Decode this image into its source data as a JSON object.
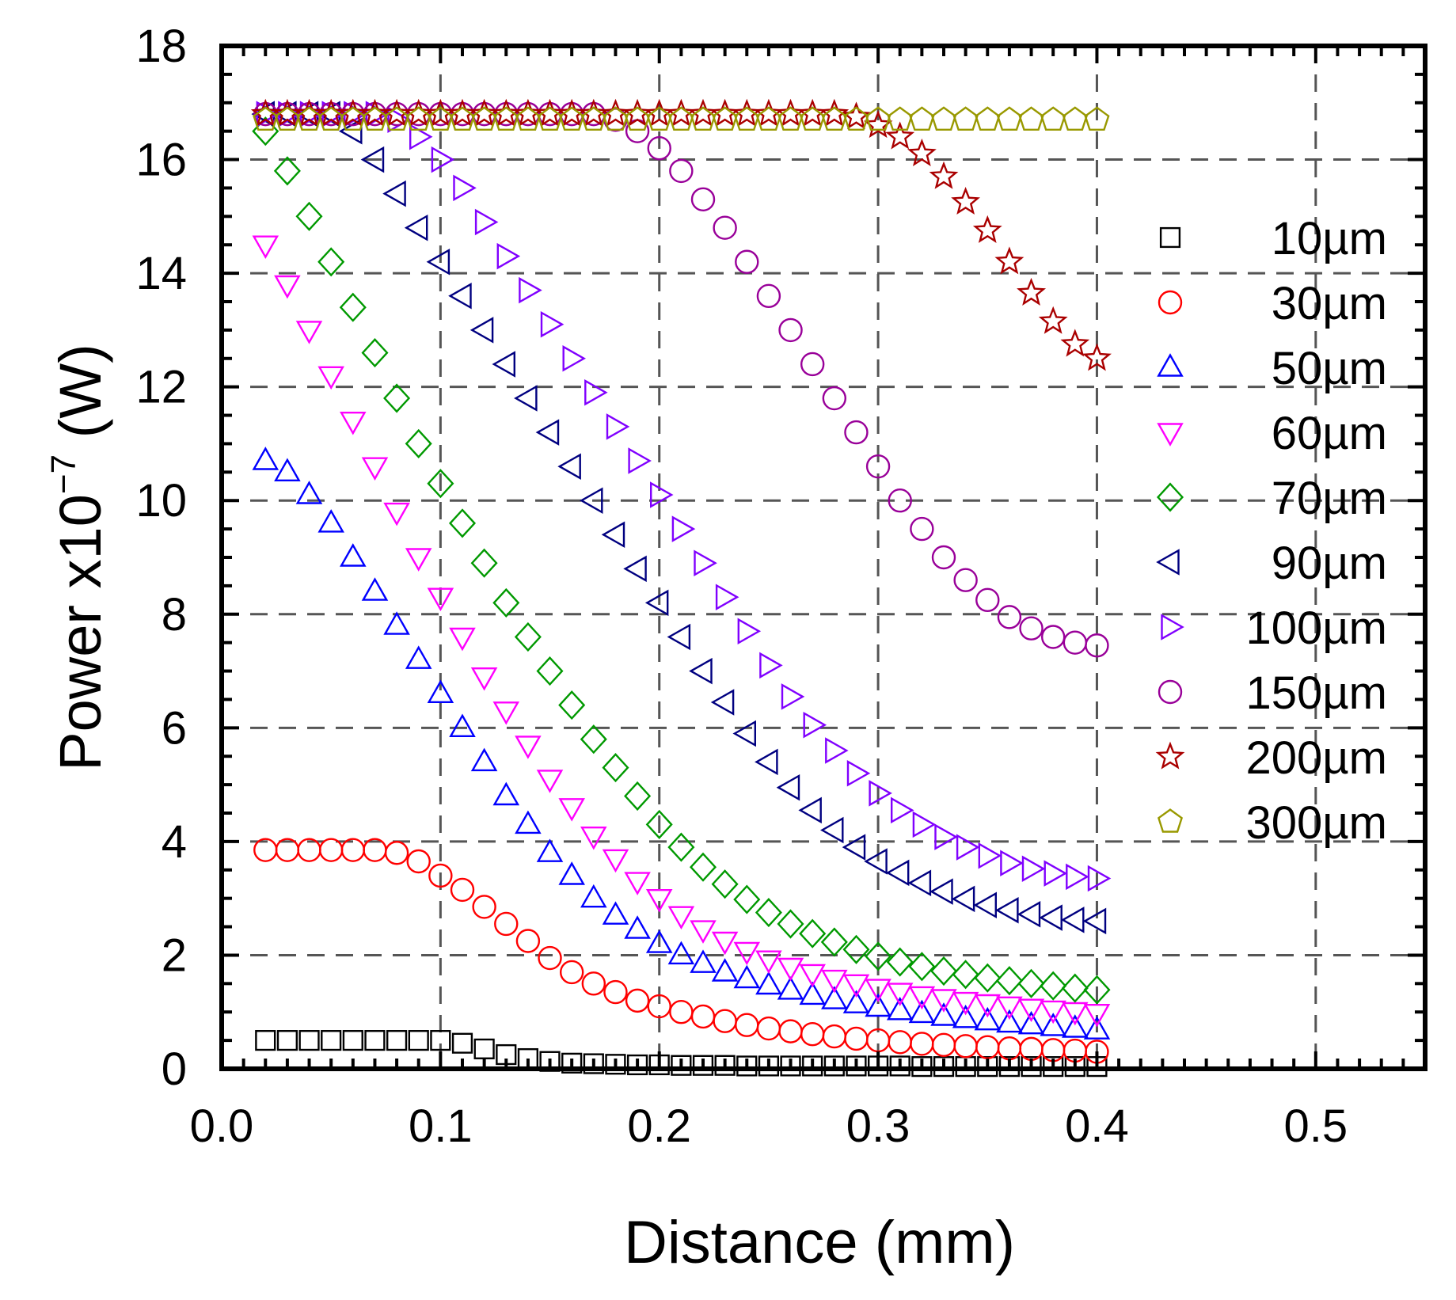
{
  "chart_data": {
    "type": "scatter",
    "title": "",
    "xlabel": "Distance (mm)",
    "ylabel": {
      "base": "Power x10",
      "exponent": "−7",
      "unit": " (W)"
    },
    "xlim": [
      0.0,
      0.55
    ],
    "ylim": [
      0,
      18
    ],
    "xticks": [
      0.0,
      0.1,
      0.2,
      0.3,
      0.4,
      0.5
    ],
    "xtick_labels": [
      "0.0",
      "0.1",
      "0.2",
      "0.3",
      "0.4",
      "0.5"
    ],
    "yticks": [
      0,
      2,
      4,
      6,
      8,
      10,
      12,
      14,
      16,
      18
    ],
    "ytick_labels": [
      "0",
      "2",
      "4",
      "6",
      "8",
      "10",
      "12",
      "14",
      "16",
      "18"
    ],
    "grid": true,
    "legend_position": "right",
    "x": [
      0.02,
      0.03,
      0.04,
      0.05,
      0.06,
      0.07,
      0.08,
      0.09,
      0.1,
      0.11,
      0.12,
      0.13,
      0.14,
      0.15,
      0.16,
      0.17,
      0.18,
      0.19,
      0.2,
      0.21,
      0.22,
      0.23,
      0.24,
      0.25,
      0.26,
      0.27,
      0.28,
      0.29,
      0.3,
      0.31,
      0.32,
      0.33,
      0.34,
      0.35,
      0.36,
      0.37,
      0.38,
      0.39,
      0.4
    ],
    "series": [
      {
        "name": "10µm",
        "marker": "square",
        "color": "#000000",
        "values": [
          0.5,
          0.5,
          0.5,
          0.5,
          0.5,
          0.5,
          0.5,
          0.5,
          0.5,
          0.45,
          0.35,
          0.25,
          0.18,
          0.13,
          0.1,
          0.09,
          0.08,
          0.07,
          0.07,
          0.06,
          0.06,
          0.06,
          0.05,
          0.05,
          0.05,
          0.05,
          0.05,
          0.05,
          0.05,
          0.05,
          0.04,
          0.04,
          0.04,
          0.04,
          0.04,
          0.04,
          0.04,
          0.04,
          0.04
        ]
      },
      {
        "name": "30µm",
        "marker": "circle",
        "color": "#ff0000",
        "values": [
          3.85,
          3.85,
          3.85,
          3.85,
          3.85,
          3.85,
          3.8,
          3.65,
          3.4,
          3.15,
          2.85,
          2.55,
          2.25,
          1.95,
          1.7,
          1.5,
          1.35,
          1.2,
          1.1,
          1.0,
          0.92,
          0.84,
          0.77,
          0.71,
          0.66,
          0.61,
          0.57,
          0.53,
          0.5,
          0.47,
          0.44,
          0.42,
          0.4,
          0.38,
          0.36,
          0.35,
          0.33,
          0.32,
          0.3
        ]
      },
      {
        "name": "50µm",
        "marker": "triangle-up",
        "color": "#0000ff",
        "values": [
          10.7,
          10.5,
          10.1,
          9.6,
          9.0,
          8.4,
          7.8,
          7.2,
          6.6,
          6.0,
          5.4,
          4.8,
          4.3,
          3.8,
          3.4,
          3.0,
          2.7,
          2.45,
          2.2,
          2.0,
          1.85,
          1.7,
          1.58,
          1.47,
          1.38,
          1.29,
          1.21,
          1.14,
          1.08,
          1.02,
          0.97,
          0.92,
          0.88,
          0.84,
          0.8,
          0.77,
          0.74,
          0.71,
          0.68
        ]
      },
      {
        "name": "60µm",
        "marker": "triangle-down",
        "color": "#ff00ff",
        "values": [
          14.5,
          13.8,
          13.0,
          12.2,
          11.4,
          10.6,
          9.8,
          9.0,
          8.3,
          7.6,
          6.9,
          6.3,
          5.7,
          5.1,
          4.6,
          4.1,
          3.7,
          3.3,
          3.0,
          2.7,
          2.45,
          2.25,
          2.07,
          1.92,
          1.79,
          1.68,
          1.58,
          1.5,
          1.42,
          1.35,
          1.29,
          1.24,
          1.19,
          1.15,
          1.11,
          1.07,
          1.04,
          1.01,
          0.98
        ]
      },
      {
        "name": "70µm",
        "marker": "diamond",
        "color": "#009900",
        "values": [
          16.5,
          15.8,
          15.0,
          14.2,
          13.4,
          12.6,
          11.8,
          11.0,
          10.3,
          9.6,
          8.9,
          8.2,
          7.6,
          7.0,
          6.4,
          5.8,
          5.3,
          4.8,
          4.3,
          3.9,
          3.55,
          3.25,
          2.98,
          2.75,
          2.55,
          2.38,
          2.23,
          2.1,
          1.98,
          1.88,
          1.8,
          1.72,
          1.66,
          1.6,
          1.55,
          1.5,
          1.46,
          1.42,
          1.39
        ]
      },
      {
        "name": "90µm",
        "marker": "triangle-left",
        "color": "#000080",
        "values": [
          16.8,
          16.8,
          16.8,
          16.8,
          16.5,
          16.0,
          15.4,
          14.8,
          14.2,
          13.6,
          13.0,
          12.4,
          11.8,
          11.2,
          10.6,
          10.0,
          9.4,
          8.8,
          8.2,
          7.6,
          7.0,
          6.45,
          5.9,
          5.4,
          4.95,
          4.55,
          4.2,
          3.9,
          3.65,
          3.45,
          3.27,
          3.12,
          2.99,
          2.88,
          2.79,
          2.72,
          2.66,
          2.62,
          2.6
        ]
      },
      {
        "name": "100µm",
        "marker": "triangle-right",
        "color": "#8000ff",
        "values": [
          16.8,
          16.8,
          16.8,
          16.8,
          16.8,
          16.8,
          16.7,
          16.4,
          16.0,
          15.5,
          14.9,
          14.3,
          13.7,
          13.1,
          12.5,
          11.9,
          11.3,
          10.7,
          10.1,
          9.5,
          8.9,
          8.3,
          7.7,
          7.1,
          6.55,
          6.05,
          5.6,
          5.2,
          4.85,
          4.55,
          4.3,
          4.08,
          3.9,
          3.75,
          3.62,
          3.52,
          3.44,
          3.38,
          3.35
        ]
      },
      {
        "name": "150µm",
        "marker": "circle",
        "color": "#990099",
        "values": [
          16.8,
          16.8,
          16.8,
          16.8,
          16.8,
          16.8,
          16.8,
          16.8,
          16.8,
          16.8,
          16.8,
          16.8,
          16.8,
          16.8,
          16.8,
          16.8,
          16.7,
          16.5,
          16.2,
          15.8,
          15.3,
          14.8,
          14.2,
          13.6,
          13.0,
          12.4,
          11.8,
          11.2,
          10.6,
          10.0,
          9.5,
          9.0,
          8.6,
          8.25,
          7.95,
          7.75,
          7.6,
          7.5,
          7.45
        ]
      },
      {
        "name": "200µm",
        "marker": "star",
        "color": "#aa0000",
        "values": [
          16.8,
          16.8,
          16.8,
          16.8,
          16.8,
          16.8,
          16.8,
          16.8,
          16.8,
          16.8,
          16.8,
          16.8,
          16.8,
          16.8,
          16.8,
          16.8,
          16.8,
          16.8,
          16.8,
          16.8,
          16.8,
          16.8,
          16.8,
          16.8,
          16.8,
          16.8,
          16.8,
          16.75,
          16.6,
          16.4,
          16.1,
          15.7,
          15.25,
          14.75,
          14.2,
          13.65,
          13.15,
          12.75,
          12.5
        ]
      },
      {
        "name": "300µm",
        "marker": "pentagon",
        "color": "#999900",
        "values": [
          16.7,
          16.7,
          16.7,
          16.7,
          16.7,
          16.7,
          16.7,
          16.7,
          16.7,
          16.7,
          16.7,
          16.7,
          16.7,
          16.7,
          16.7,
          16.7,
          16.7,
          16.7,
          16.7,
          16.7,
          16.7,
          16.7,
          16.7,
          16.7,
          16.7,
          16.7,
          16.7,
          16.7,
          16.7,
          16.7,
          16.7,
          16.7,
          16.7,
          16.7,
          16.7,
          16.7,
          16.7,
          16.7,
          16.7
        ]
      }
    ]
  }
}
